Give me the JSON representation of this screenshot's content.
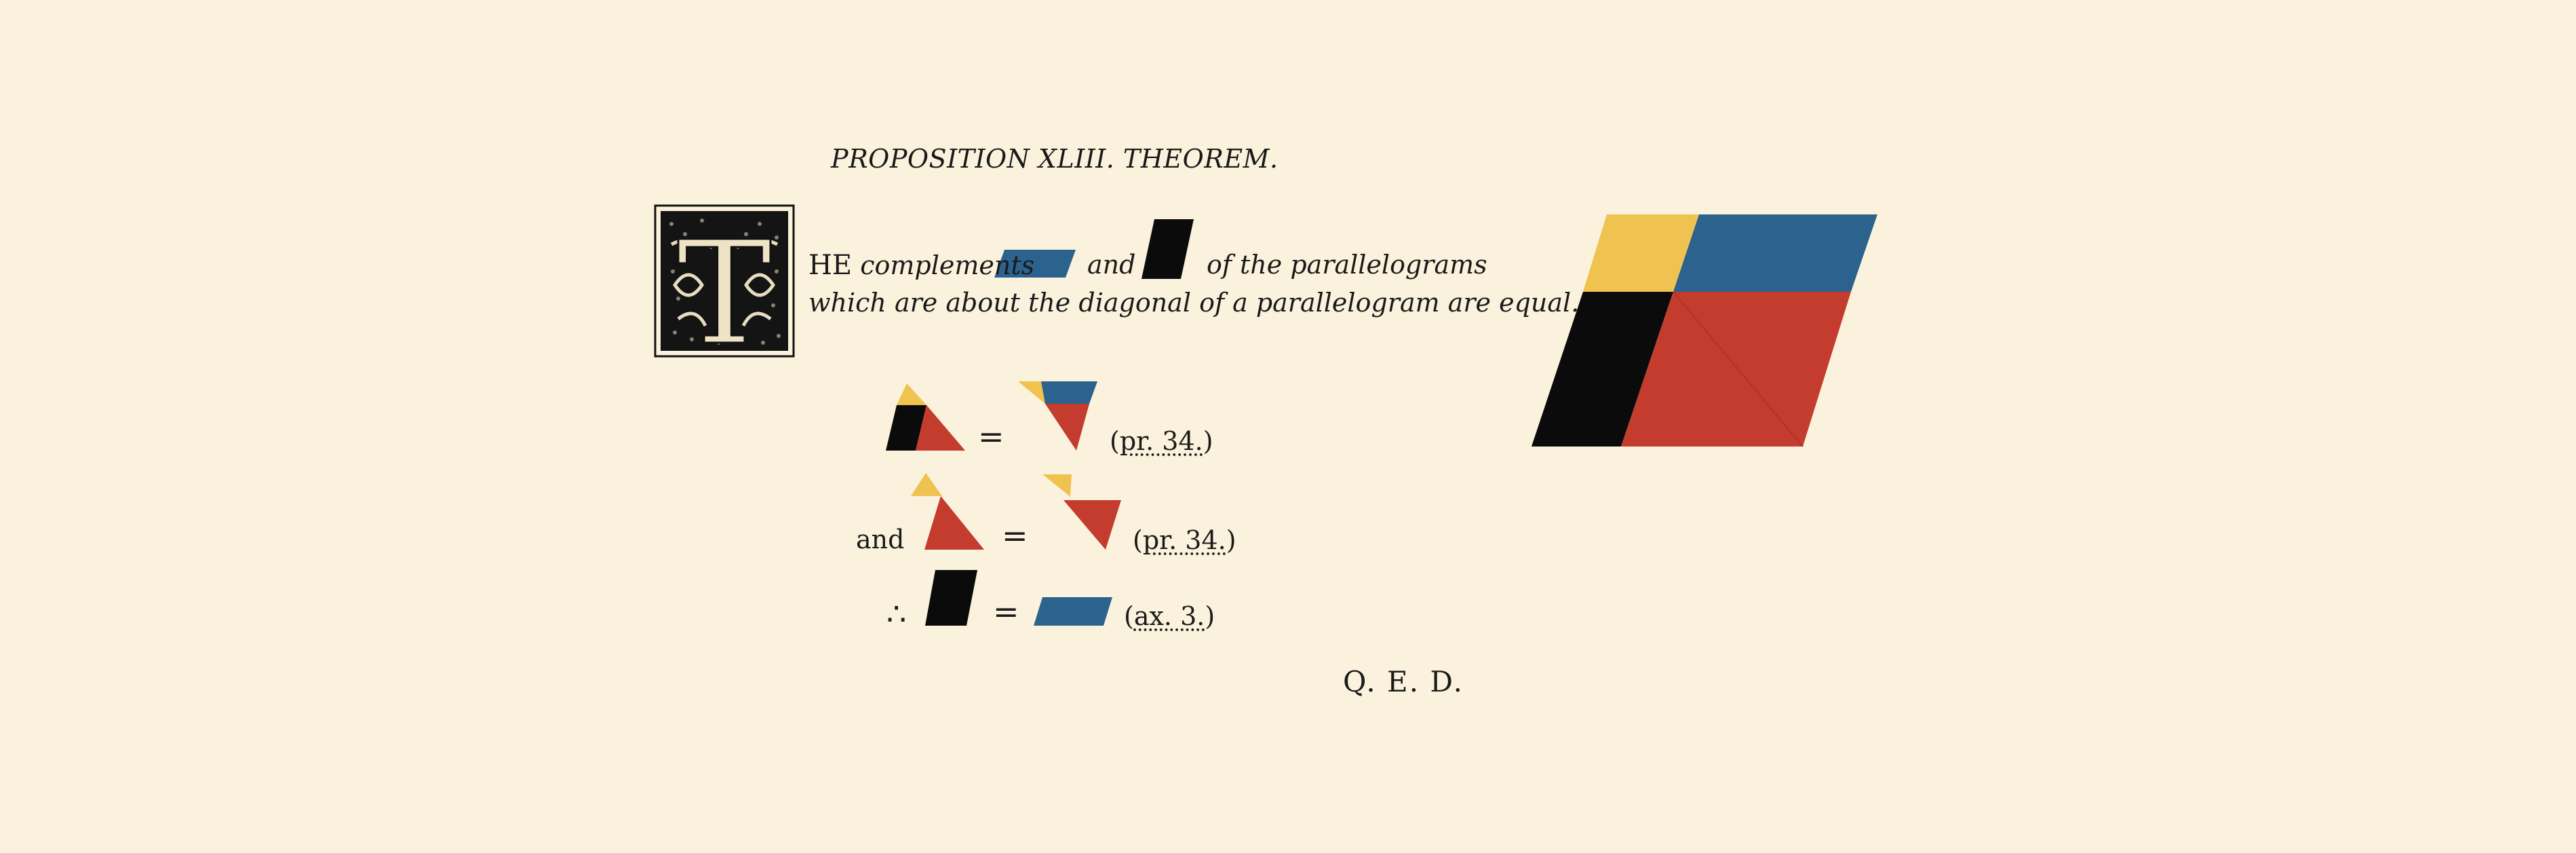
{
  "title": "PROPOSITION XLIII. THEOREM.",
  "initial_letter": "T",
  "statement": {
    "cap": "HE",
    "w1": "complements",
    "w2": "and",
    "w3": "of the parallelograms",
    "line2": "which are about the diagonal of a parallelogram are equal."
  },
  "proof": {
    "eq": "=",
    "and_label": "and",
    "therefore": "∴",
    "ref1": "pr. 34.",
    "ref2": "pr. 34.",
    "ref3": "ax. 3."
  },
  "qed": "Q. E. D.",
  "colors": {
    "yellow": "#f0c350",
    "blue": "#2c628e",
    "red": "#c43c2e",
    "black": "#0b0b0b",
    "background": "#faf2dc"
  }
}
